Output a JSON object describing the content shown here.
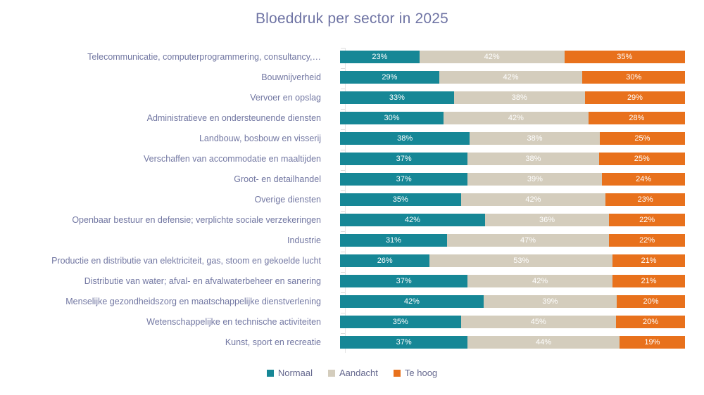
{
  "title": "Bloeddruk per sector in 2025",
  "chart_data": {
    "type": "bar",
    "orientation": "horizontal",
    "stacked": "100%",
    "title": "Bloeddruk per sector in 2025",
    "xlabel": "",
    "ylabel": "",
    "xlim": [
      0,
      100
    ],
    "grid": false,
    "legend_position": "bottom",
    "value_suffix": "%",
    "categories": [
      "Telecommunicatie, computerprogrammering, consultancy,…",
      "Bouwnijverheid",
      "Vervoer en opslag",
      "Administratieve en ondersteunende diensten",
      "Landbouw, bosbouw en visserij",
      "Verschaffen van accommodatie en maaltijden",
      "Groot- en detailhandel",
      "Overige diensten",
      "Openbaar bestuur en defensie; verplichte sociale verzekeringen",
      "Industrie",
      "Productie en distributie van elektriciteit, gas, stoom en gekoelde lucht",
      "Distributie van water; afval- en afvalwaterbeheer en sanering",
      "Menselijke gezondheidszorg en maatschappelijke dienstverlening",
      "Wetenschappelijke en technische activiteiten",
      "Kunst, sport en recreatie"
    ],
    "series": [
      {
        "name": "Normaal",
        "color": "#168796",
        "values": [
          23,
          29,
          33,
          30,
          38,
          37,
          37,
          35,
          42,
          31,
          26,
          37,
          42,
          35,
          37
        ]
      },
      {
        "name": "Aandacht",
        "color": "#D4CDBD",
        "values": [
          42,
          42,
          38,
          42,
          38,
          38,
          39,
          42,
          36,
          47,
          53,
          42,
          39,
          45,
          44
        ]
      },
      {
        "name": "Te hoog",
        "color": "#E8711C",
        "values": [
          35,
          30,
          29,
          28,
          25,
          25,
          24,
          23,
          22,
          22,
          21,
          21,
          20,
          20,
          19
        ]
      }
    ]
  },
  "colors": {
    "title_text": "#6F74A4",
    "category_text": "#7277A2",
    "legend_text": "#66698F",
    "value_text": "#FFFFFF",
    "axis_line": "#E4E4E4"
  }
}
